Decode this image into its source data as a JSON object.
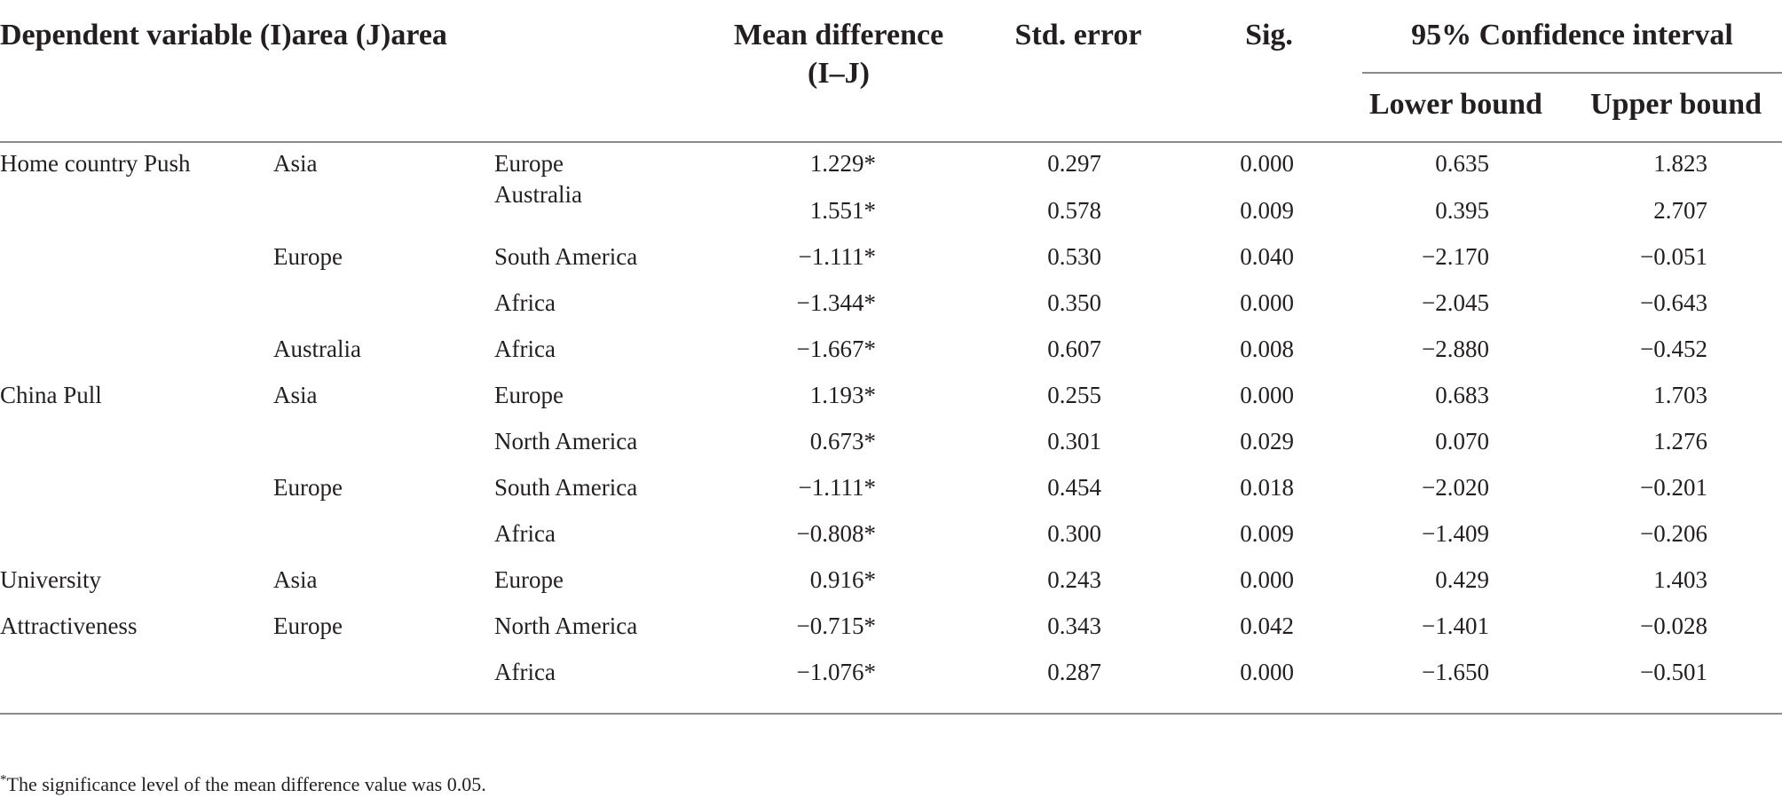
{
  "table": {
    "headers": {
      "dependent": "Dependent variable (I)area (J)area",
      "mean_diff_line1": "Mean difference",
      "mean_diff_line2": "(I–J)",
      "std_error": "Std. error",
      "sig": "Sig.",
      "ci": "95% Confidence interval",
      "lower": "Lower bound",
      "upper": "Upper bound"
    },
    "rows": [
      {
        "dep": "Home country Push",
        "i": "Asia",
        "j": "Europe",
        "md": "1.229*",
        "se": "0.297",
        "sig": "0.000",
        "lb": "0.635",
        "ub": "1.823"
      },
      {
        "dep": "",
        "i": "",
        "j": "Australia",
        "md": "1.551*",
        "se": "0.578",
        "sig": "0.009",
        "lb": "0.395",
        "ub": "2.707"
      },
      {
        "dep": "",
        "i": "Europe",
        "j": "South America",
        "md": "−1.111*",
        "se": "0.530",
        "sig": "0.040",
        "lb": "−2.170",
        "ub": "−0.051"
      },
      {
        "dep": "",
        "i": "",
        "j": "Africa",
        "md": "−1.344*",
        "se": "0.350",
        "sig": "0.000",
        "lb": "−2.045",
        "ub": "−0.643"
      },
      {
        "dep": "",
        "i": "Australia",
        "j": "Africa",
        "md": "−1.667*",
        "se": "0.607",
        "sig": "0.008",
        "lb": "−2.880",
        "ub": "−0.452"
      },
      {
        "dep": "China Pull",
        "i": "Asia",
        "j": "Europe",
        "md": "1.193*",
        "se": "0.255",
        "sig": "0.000",
        "lb": "0.683",
        "ub": "1.703"
      },
      {
        "dep": "",
        "i": "",
        "j": "North America",
        "md": "0.673*",
        "se": "0.301",
        "sig": "0.029",
        "lb": "0.070",
        "ub": "1.276"
      },
      {
        "dep": "",
        "i": "Europe",
        "j": "South America",
        "md": "−1.111*",
        "se": "0.454",
        "sig": "0.018",
        "lb": "−2.020",
        "ub": "−0.201"
      },
      {
        "dep": "",
        "i": "",
        "j": "Africa",
        "md": "−0.808*",
        "se": "0.300",
        "sig": "0.009",
        "lb": "−1.409",
        "ub": "−0.206"
      },
      {
        "dep": "University",
        "i": "Asia",
        "j": "Europe",
        "md": "0.916*",
        "se": "0.243",
        "sig": "0.000",
        "lb": "0.429",
        "ub": "1.403"
      },
      {
        "dep": "Attractiveness",
        "i": "Europe",
        "j": "North America",
        "md": "−0.715*",
        "se": "0.343",
        "sig": "0.042",
        "lb": "−1.401",
        "ub": "−0.028"
      },
      {
        "dep": "",
        "i": "",
        "j": "Africa",
        "md": "−1.076*",
        "se": "0.287",
        "sig": "0.000",
        "lb": "−1.650",
        "ub": "−0.501"
      }
    ],
    "footnote_mark": "*",
    "footnote": "The significance level of the mean difference value was 0.05."
  }
}
